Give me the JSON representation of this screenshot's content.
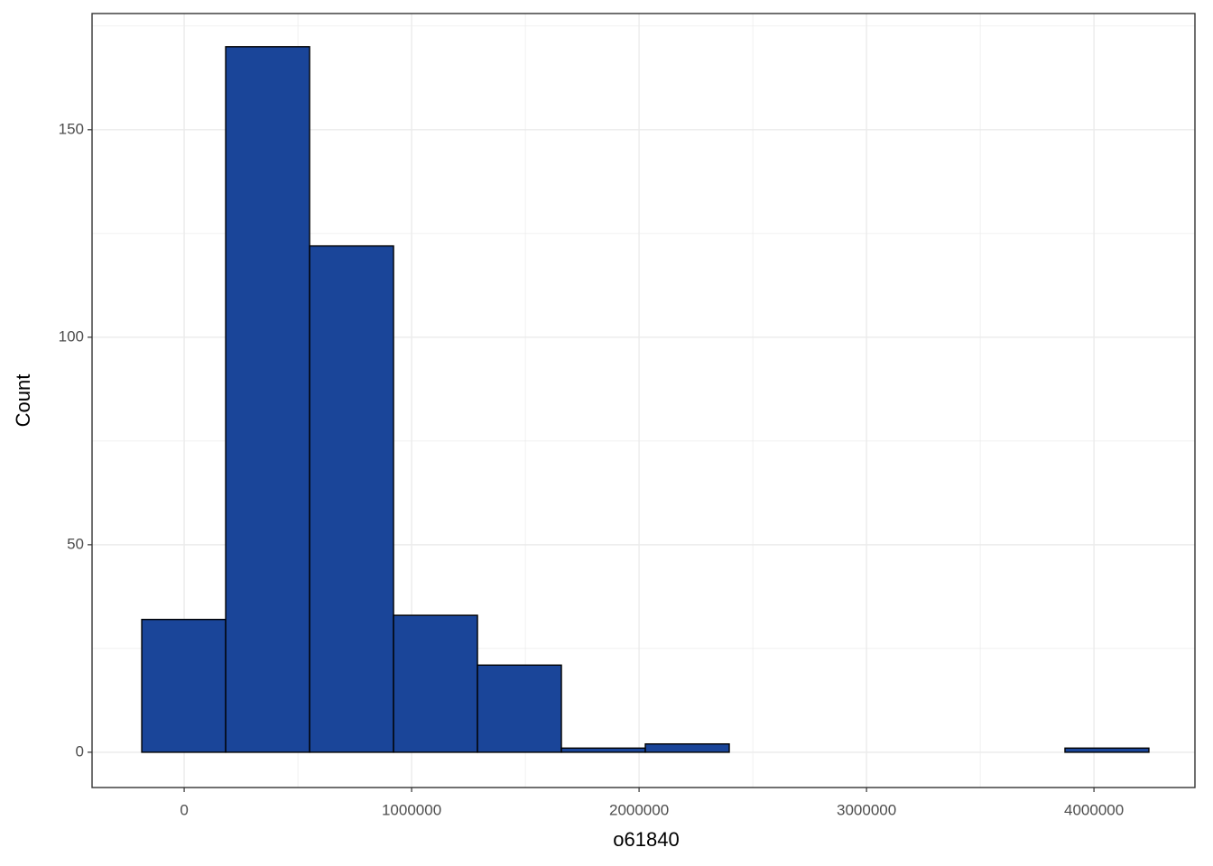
{
  "chart_data": {
    "type": "histogram",
    "x_label": "o61840",
    "y_label": "Count",
    "bins": [
      -186500,
      182500,
      551500,
      920500,
      1289500,
      1658500,
      2027500,
      2396500,
      2765500,
      3134500,
      3503500,
      3872500,
      4241500
    ],
    "counts": [
      32,
      170,
      122,
      33,
      21,
      1,
      2,
      0,
      0,
      0,
      0,
      1
    ],
    "color": "#1a4599",
    "edge_color": "#000000",
    "xlim": [
      -405000,
      4444000
    ],
    "xticks": [
      0,
      1000000,
      2000000,
      3000000,
      4000000
    ],
    "ylim": [
      -8.5,
      178
    ],
    "yticks": [
      0,
      50,
      100,
      150
    ],
    "grid": true,
    "minor_grid": true
  }
}
